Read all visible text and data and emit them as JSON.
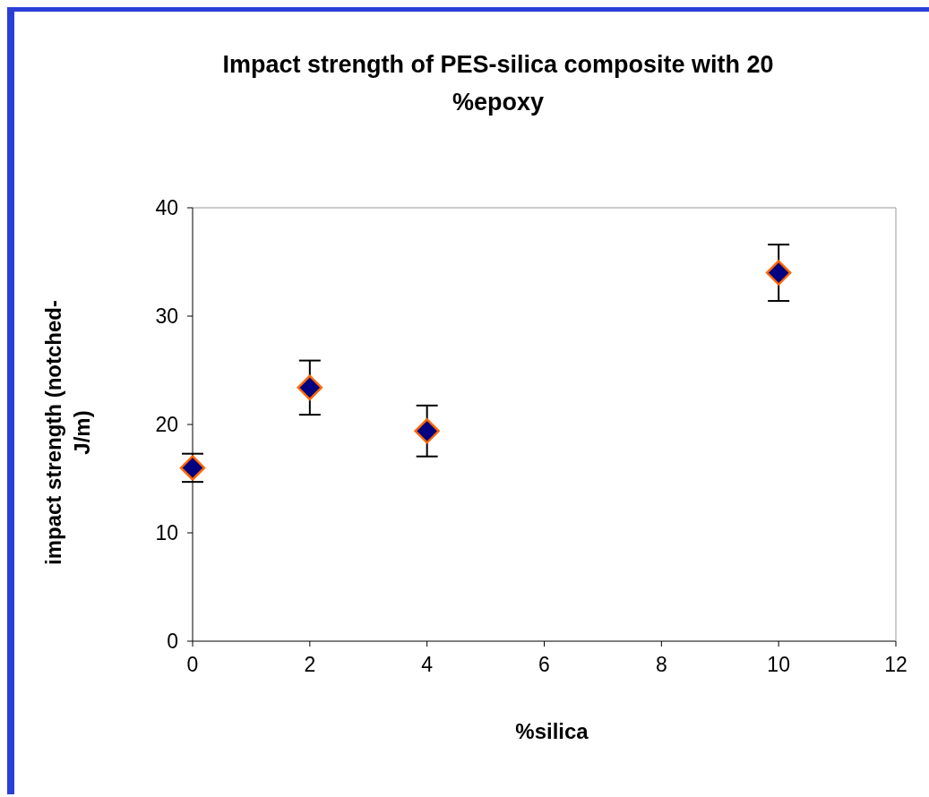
{
  "chart_data": {
    "type": "scatter",
    "title": "Impact strength of PES-silica composite with 20 %epoxy",
    "xlabel": "%silica",
    "ylabel": "impact strength (notched-J/m)",
    "x": [
      0,
      2,
      4,
      10
    ],
    "values": [
      16.0,
      23.4,
      19.4,
      34.0
    ],
    "errors": [
      1.3,
      2.5,
      2.35,
      2.6
    ],
    "color": "#000080",
    "marker": "diamond",
    "xlim": [
      0,
      12
    ],
    "xticks": [
      0,
      2,
      4,
      6,
      8,
      10,
      12
    ],
    "ylim": [
      0,
      40
    ],
    "yticks": [
      0,
      10,
      20,
      30,
      40
    ]
  }
}
